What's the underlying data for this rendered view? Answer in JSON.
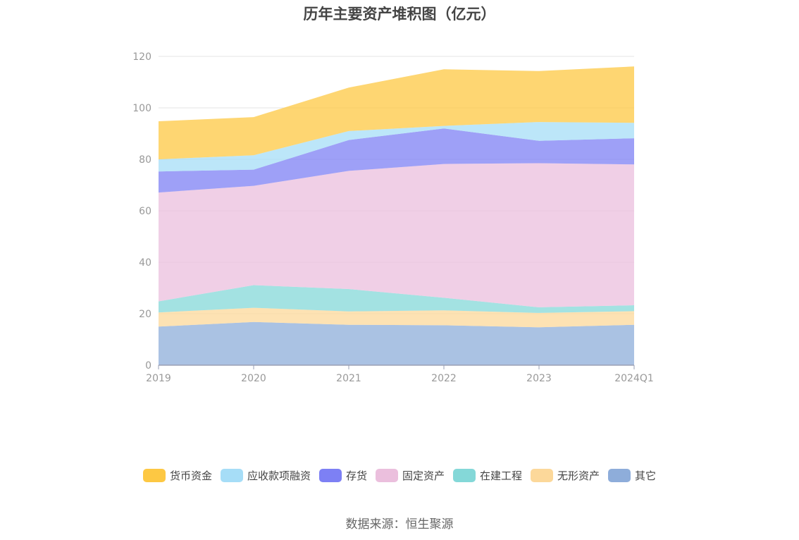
{
  "chart_data": {
    "type": "area",
    "stacked": true,
    "title": "历年主要资产堆积图（亿元）",
    "categories": [
      "2019",
      "2020",
      "2021",
      "2022",
      "2023",
      "2024Q1"
    ],
    "ylim": [
      0,
      120
    ],
    "yticks": [
      0,
      20,
      40,
      60,
      80,
      100,
      120
    ],
    "grid": true,
    "legend_position": "bottom",
    "series": [
      {
        "name": "其它",
        "color": "#8eadda",
        "values": [
          15.0,
          16.8,
          15.7,
          15.5,
          14.7,
          15.7
        ]
      },
      {
        "name": "无形资产",
        "color": "#fcd89a",
        "values": [
          5.5,
          5.5,
          5.2,
          5.8,
          5.6,
          5.3
        ]
      },
      {
        "name": "在建工程",
        "color": "#84d8d8",
        "values": [
          4.3,
          8.8,
          8.7,
          4.9,
          2.2,
          2.3
        ]
      },
      {
        "name": "固定资产",
        "color": "#ebbfdd",
        "values": [
          42.3,
          38.6,
          45.9,
          52.0,
          56.0,
          54.7
        ]
      },
      {
        "name": "存货",
        "color": "#7d80f4",
        "values": [
          8.2,
          6.3,
          12.0,
          13.8,
          8.7,
          10.2
        ]
      },
      {
        "name": "应收款项融资",
        "color": "#a6ddf7",
        "values": [
          4.7,
          5.6,
          3.5,
          1.0,
          7.3,
          6.0
        ]
      },
      {
        "name": "货币资金",
        "color": "#fdc843",
        "values": [
          14.8,
          14.8,
          16.9,
          22.0,
          19.8,
          21.9
        ]
      }
    ],
    "legend_order": [
      "货币资金",
      "应收款项融资",
      "存货",
      "固定资产",
      "在建工程",
      "无形资产",
      "其它"
    ]
  },
  "source_note": "数据来源：恒生聚源"
}
